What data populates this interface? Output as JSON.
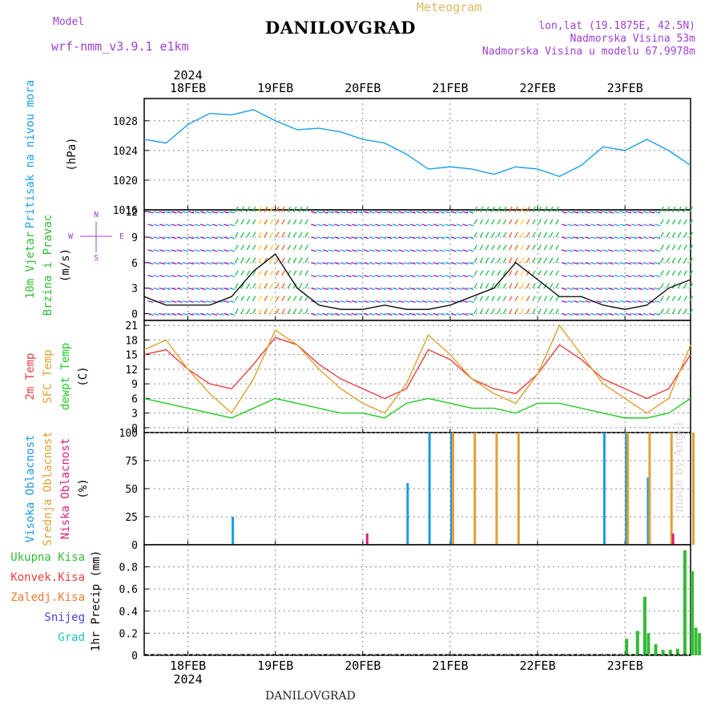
{
  "header": {
    "model_label": "Model",
    "model_name": "wrf-nmm_v3.9.1 e1km",
    "title": "DANILOVGRAD",
    "meteogram": "Meteogram",
    "lonlat": "lon,lat (19.1875E, 42.5N)",
    "altitude": "Nadmorska Visina 53m",
    "model_altitude": "Nadmorska Visina u modelu 67.9978m"
  },
  "footer": {
    "station": "DANILOVGRAD",
    "credit": "made by Angel"
  },
  "colors": {
    "pressure": "#1ba0e8",
    "temp2m": "#e84040",
    "sfc_temp": "#e0a030",
    "dewpoint": "#22cc22",
    "cloud_high": "#1b9ae0",
    "cloud_mid": "#e0a030",
    "cloud_low": "#e0207a",
    "precip_total": "#33bb33",
    "precip_conv": "#e84040",
    "precip_froz": "#f07a30",
    "snow": "#4444dd",
    "graupel": "#22c0c0",
    "wind_calm": "#8b22cc",
    "purple_text": "#a040d0"
  },
  "chart_data": [
    {
      "type": "line",
      "panel": "pressure",
      "ylabel": [
        "Pritisak na nivou mora",
        "(hPa)"
      ],
      "ylim": [
        1016,
        1031
      ],
      "yticks": [
        1016,
        1020,
        1024,
        1028
      ],
      "x_hours": [
        0,
        6,
        12,
        18,
        24,
        30,
        36,
        42,
        48,
        54,
        60,
        66,
        72,
        78,
        84,
        90,
        96,
        102,
        108,
        114,
        120,
        126,
        132,
        138,
        144,
        150
      ],
      "series": [
        {
          "values": [
            1025.5,
            1025,
            1027.5,
            1029,
            1028.8,
            1029.5,
            1028,
            1026.8,
            1027,
            1026.5,
            1025.5,
            1025,
            1023.5,
            1021.5,
            1021.8,
            1021.5,
            1020.8,
            1021.8,
            1021.5,
            1020.5,
            1022,
            1024.5,
            1024,
            1025.5,
            1024,
            1022
          ]
        }
      ]
    },
    {
      "type": "line",
      "panel": "wind",
      "ylabel": [
        "10m Vjetar",
        "Brzina i Pravac",
        "(m/s)"
      ],
      "ylim": [
        -0.8,
        12.2
      ],
      "yticks": [
        0,
        3,
        6,
        9,
        12
      ],
      "compass": [
        "N",
        "E",
        "S",
        "W"
      ],
      "x_hours": [
        0,
        6,
        12,
        18,
        24,
        30,
        36,
        42,
        48,
        54,
        60,
        66,
        72,
        78,
        84,
        90,
        96,
        102,
        108,
        114,
        120,
        126,
        132,
        138,
        144,
        150
      ],
      "series": [
        {
          "values": [
            2,
            1,
            1,
            1,
            2,
            5,
            7,
            3,
            1,
            0.5,
            0.5,
            1,
            0.5,
            0.5,
            1,
            2,
            3,
            6,
            4,
            2,
            2,
            1,
            0.5,
            1,
            3,
            4
          ]
        }
      ]
    },
    {
      "type": "line",
      "panel": "temperature",
      "ylabel": [
        "2m Temp",
        "SFC Temp",
        "dewpt Temp",
        "(C)"
      ],
      "ylim": [
        -1,
        22
      ],
      "yticks": [
        0,
        3,
        6,
        9,
        12,
        15,
        18,
        21
      ],
      "x_hours": [
        0,
        6,
        12,
        18,
        24,
        30,
        36,
        42,
        48,
        54,
        60,
        66,
        72,
        78,
        84,
        90,
        96,
        102,
        108,
        114,
        120,
        126,
        132,
        138,
        144,
        150
      ],
      "series": [
        {
          "name": "2m Temp",
          "values": [
            15,
            16,
            12,
            9,
            8,
            13,
            18.5,
            17,
            13,
            10,
            8,
            6,
            8,
            16,
            14,
            10,
            8,
            7,
            11,
            17,
            14,
            10,
            8,
            6,
            8,
            15
          ]
        },
        {
          "name": "SFC Temp",
          "values": [
            16,
            18,
            12,
            7,
            3,
            10,
            20,
            17,
            12,
            8,
            5,
            3,
            9,
            19,
            15,
            10,
            7,
            5,
            11,
            21,
            15,
            9,
            6,
            3,
            6,
            17
          ]
        },
        {
          "name": "dewpt Temp",
          "values": [
            6,
            5,
            4,
            3,
            2,
            4,
            6,
            5,
            4,
            3,
            3,
            2,
            5,
            6,
            5,
            4,
            4,
            3,
            5,
            5,
            4,
            3,
            2,
            2,
            3,
            6
          ]
        }
      ]
    },
    {
      "type": "bar",
      "panel": "clouds",
      "ylabel": [
        "Visoka Oblacnost",
        "Srednja Oblacnost",
        "Niska Oblacnost",
        "(%)"
      ],
      "ylim": [
        0,
        100
      ],
      "yticks": [
        0,
        25,
        50,
        75,
        100
      ],
      "x_hours": [
        0,
        6,
        12,
        18,
        24,
        30,
        36,
        42,
        48,
        54,
        60,
        66,
        72,
        78,
        84,
        90,
        96,
        102,
        108,
        114,
        120,
        126,
        132,
        138,
        144,
        150
      ],
      "series": [
        {
          "name": "Visoka Oblacnost",
          "values": [
            0,
            0,
            0,
            0,
            25,
            0,
            0,
            0,
            0,
            0,
            0,
            0,
            55,
            100,
            100,
            0,
            0,
            0,
            0,
            0,
            0,
            100,
            100,
            60,
            0,
            0
          ]
        },
        {
          "name": "Srednja Oblacnost",
          "values": [
            0,
            0,
            0,
            0,
            0,
            0,
            0,
            0,
            0,
            0,
            0,
            0,
            0,
            0,
            100,
            100,
            100,
            100,
            0,
            0,
            0,
            0,
            100,
            100,
            100,
            100
          ]
        },
        {
          "name": "Niska Oblacnost",
          "values": [
            0,
            0,
            0,
            0,
            0,
            0,
            0,
            0,
            0,
            0,
            10,
            0,
            0,
            0,
            0,
            0,
            0,
            0,
            0,
            0,
            0,
            0,
            0,
            0,
            10,
            0
          ]
        }
      ]
    },
    {
      "type": "bar",
      "panel": "precipitation",
      "ylabel": [
        "Ukupna Kisa",
        "Konvek.Kisa",
        "Zaledj.Kisa",
        "Snijeg",
        "Grad",
        "1hr Precip (mm)"
      ],
      "ylim": [
        0,
        1.0
      ],
      "yticks": [
        0,
        0.2,
        0.4,
        0.6,
        0.8
      ],
      "x_hours": [
        132,
        135,
        137,
        138,
        140,
        142,
        144,
        146,
        148,
        150,
        151,
        152
      ],
      "series": [
        {
          "name": "Ukupna Kisa",
          "values": [
            0.15,
            0.22,
            0.53,
            0.2,
            0.1,
            0.05,
            0.05,
            0.06,
            0.95,
            0.76,
            0.25,
            0.2
          ]
        }
      ]
    }
  ],
  "x_axis": {
    "start_date": "2024-02-17 12:00",
    "year": "2024",
    "days": [
      {
        "label": "18FEB",
        "hour": 12
      },
      {
        "label": "19FEB",
        "hour": 36
      },
      {
        "label": "20FEB",
        "hour": 60
      },
      {
        "label": "21FEB",
        "hour": 84
      },
      {
        "label": "22FEB",
        "hour": 108
      },
      {
        "label": "23FEB",
        "hour": 132
      }
    ],
    "hours_total": 150
  }
}
